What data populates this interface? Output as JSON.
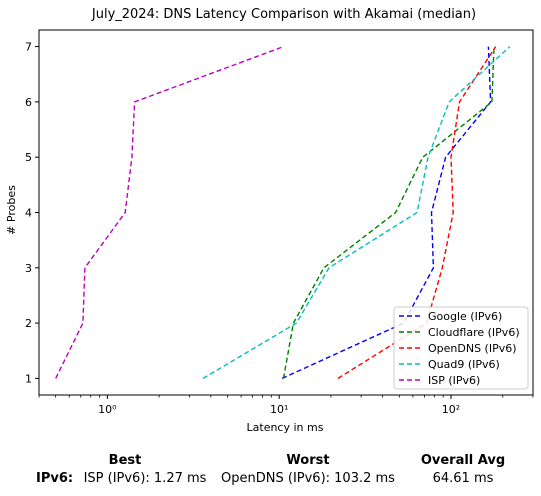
{
  "chart_data": {
    "type": "line",
    "title": "July_2024: DNS Latency Comparison with Akamai (median)",
    "xlabel": "Latency in ms",
    "ylabel": "# Probes",
    "xscale": "log",
    "xlim": [
      0.4,
      300
    ],
    "ylim": [
      0.7,
      7.3
    ],
    "xticks": [
      {
        "v": 1,
        "label": "10⁰"
      },
      {
        "v": 10,
        "label": "10¹"
      },
      {
        "v": 100,
        "label": "10²"
      }
    ],
    "yticks": [
      1,
      2,
      3,
      4,
      5,
      6,
      7
    ],
    "legend_position": "lower-right",
    "line_style": "dashed",
    "series": [
      {
        "name": "Google (IPv6)",
        "color": "#0000ff",
        "x": [
          10.4,
          53,
          79,
          77,
          93,
          170,
          165
        ],
        "y": [
          1,
          2,
          3,
          4,
          5,
          6,
          7
        ]
      },
      {
        "name": "Cloudflare (IPv6)",
        "color": "#008000",
        "x": [
          10.6,
          12.1,
          18.2,
          47.6,
          68.5,
          173,
          178
        ],
        "y": [
          1,
          2,
          3,
          4,
          5,
          6,
          7
        ]
      },
      {
        "name": "OpenDNS (IPv6)",
        "color": "#ff0000",
        "x": [
          22,
          72,
          89,
          103,
          100,
          112,
          182
        ],
        "y": [
          1,
          2,
          3,
          4,
          5,
          6,
          7
        ]
      },
      {
        "name": "Quad9 (IPv6)",
        "color": "#00bfbf",
        "x": [
          3.6,
          12.6,
          19.5,
          63.4,
          73.6,
          97.6,
          220
        ],
        "y": [
          1,
          2,
          3,
          4,
          5,
          6,
          7
        ]
      },
      {
        "name": "ISP (IPv6)",
        "color": "#bf00bf",
        "x": [
          0.5,
          0.72,
          0.74,
          1.27,
          1.39,
          1.44,
          10.6
        ],
        "y": [
          1,
          2,
          3,
          4,
          5,
          6,
          7
        ]
      }
    ]
  },
  "summary": {
    "headers": {
      "best": "Best",
      "worst": "Worst",
      "avg": "Overall Avg"
    },
    "row_label": "IPv6:",
    "best": "ISP (IPv6): 1.27 ms",
    "worst": "OpenDNS (IPv6): 103.2 ms",
    "avg": "64.61 ms"
  }
}
